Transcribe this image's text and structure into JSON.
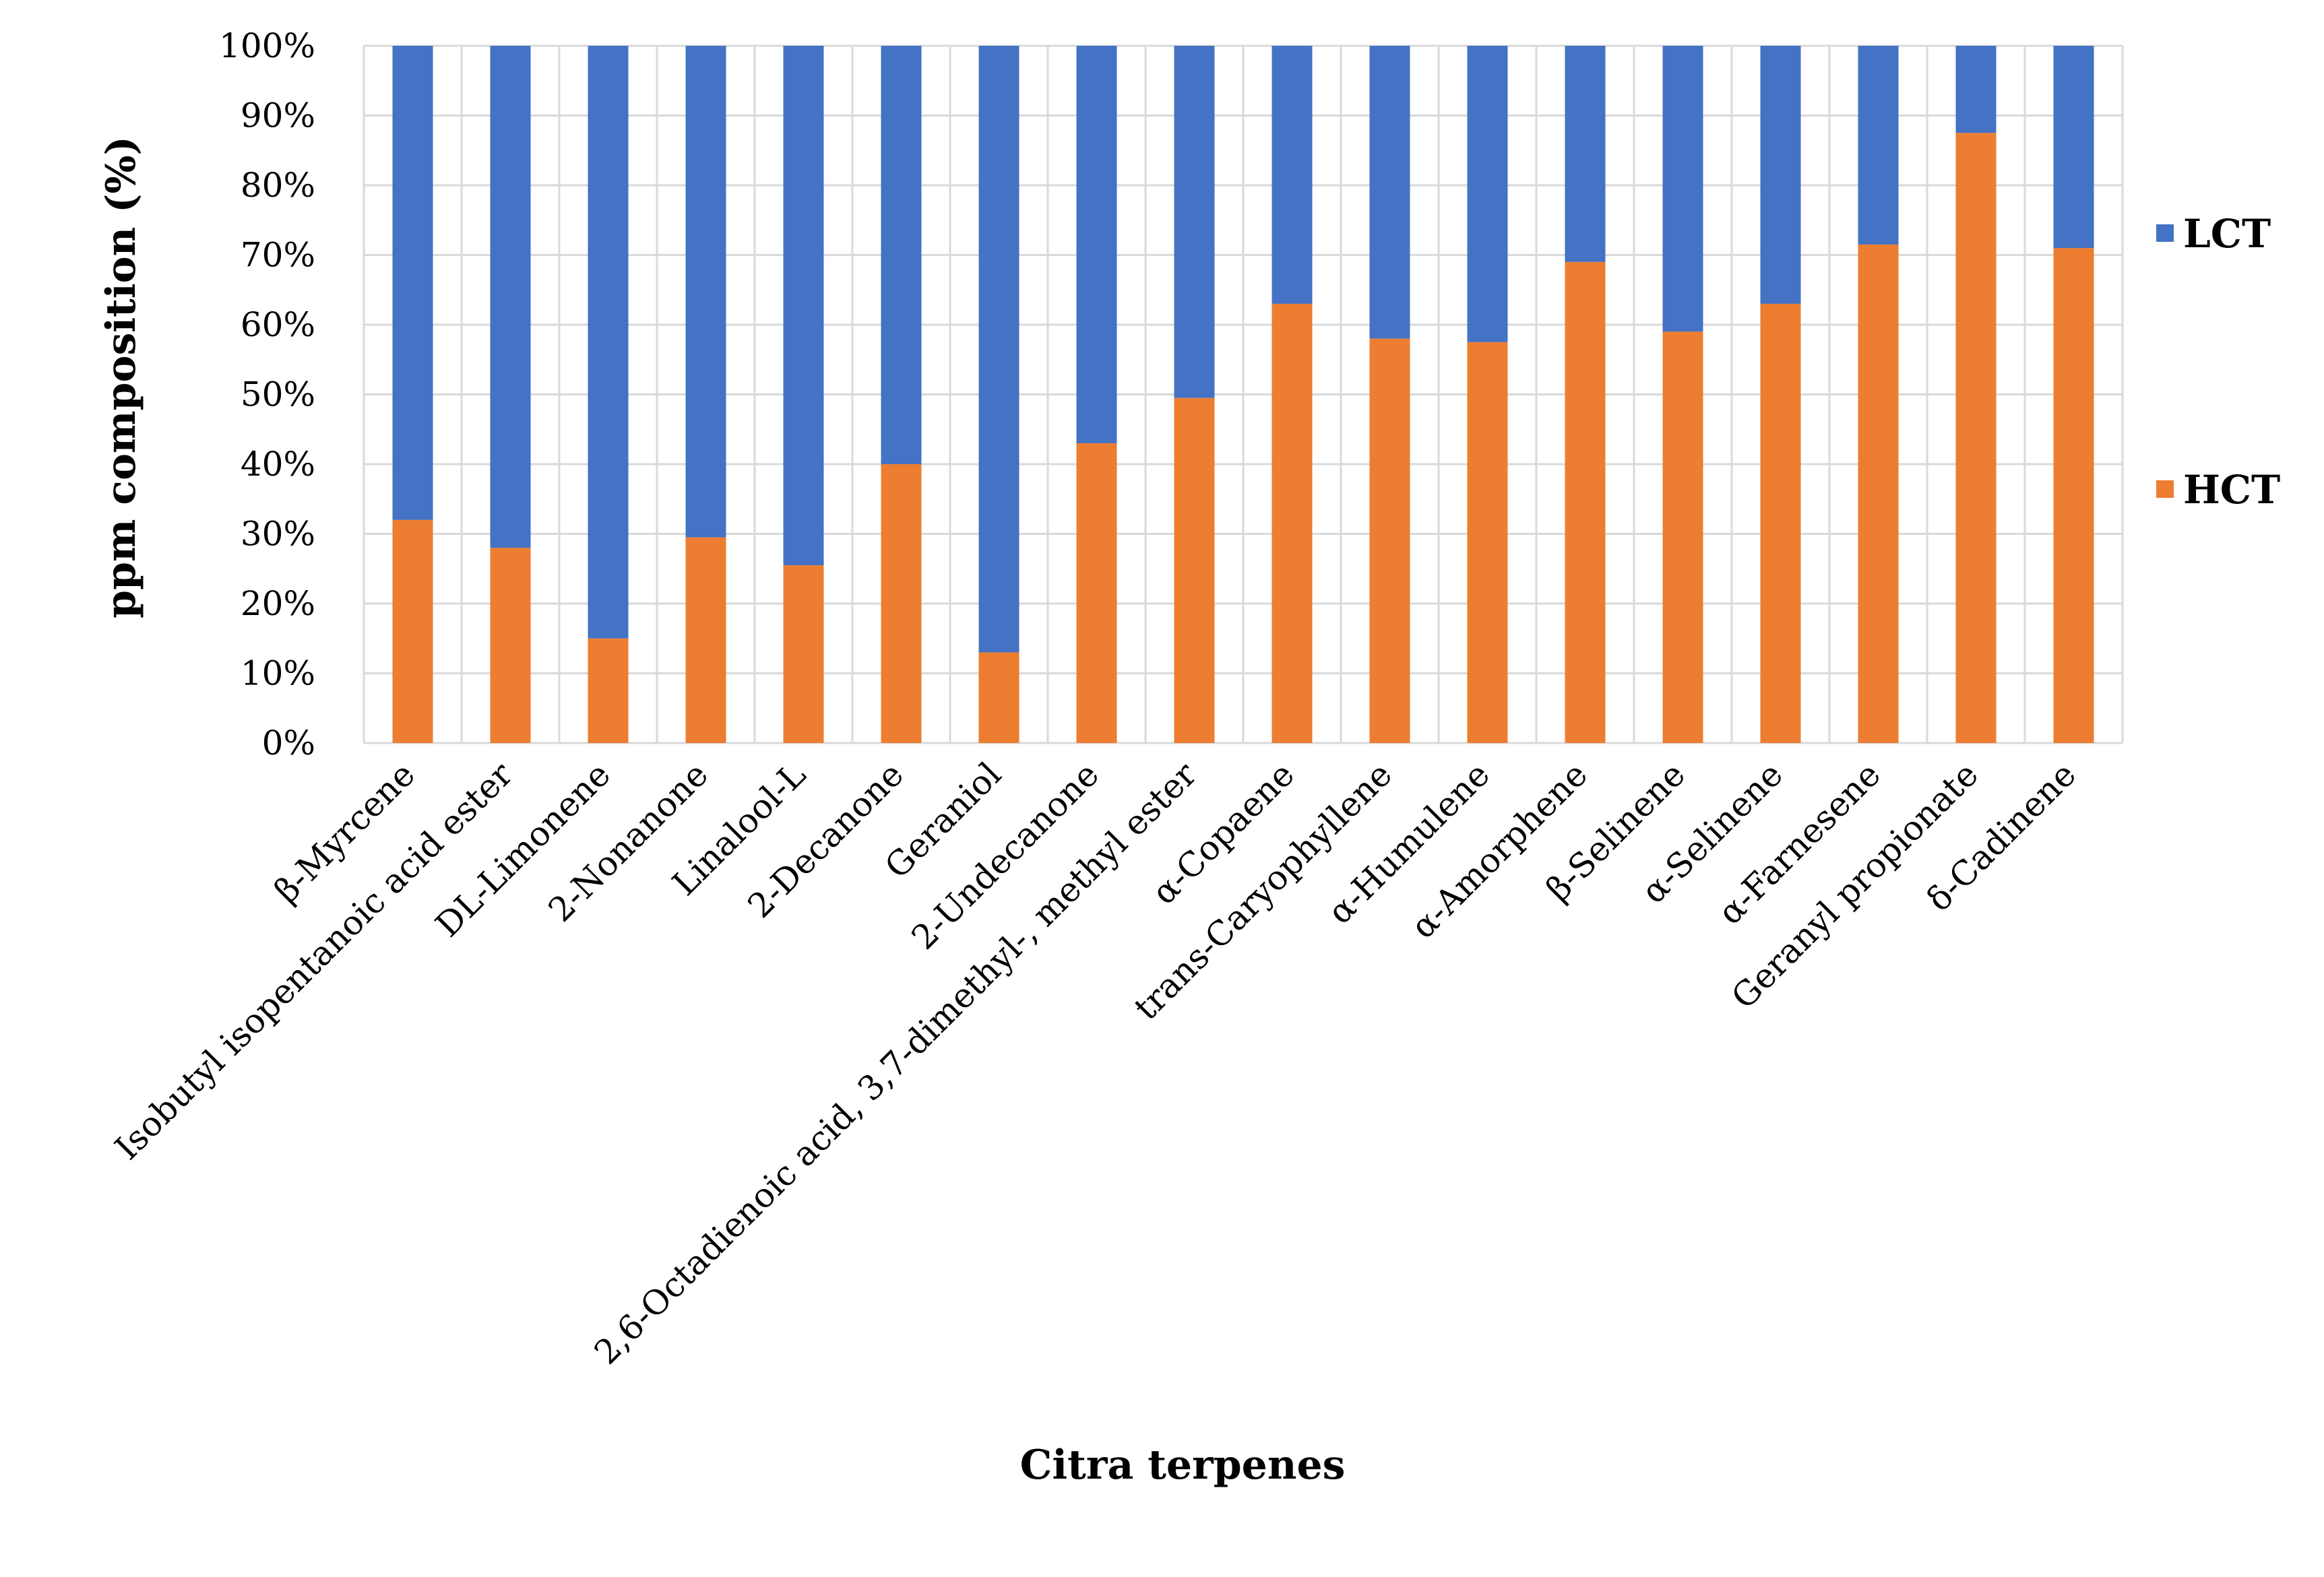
{
  "chart_data": {
    "type": "bar",
    "stacked": true,
    "title": "",
    "xlabel": "Citra terpenes",
    "ylabel": "ppm composition (%)",
    "ylim": [
      0,
      100
    ],
    "y_ticks": [
      "0%",
      "10%",
      "20%",
      "30%",
      "40%",
      "50%",
      "60%",
      "70%",
      "80%",
      "90%",
      "100%"
    ],
    "grid": true,
    "legend_position": "right",
    "categories": [
      "β-Myrcene",
      "Isobutyl isopentanoic acid ester",
      "DL-Limonene",
      "2-Nonanone",
      "Linalool-L",
      "2-Decanone",
      "Geraniol",
      "2-Undecanone",
      "2,6-Octadienoic acid, 3,7-dimethyl-, methyl ester",
      "α-Copaene",
      "trans-Caryophyllene",
      "α-Humulene",
      "α-Amorphene",
      "β-Selinene",
      "α-Selinene",
      "α-Farnesene",
      "Geranyl propionate",
      "δ-Cadinene"
    ],
    "series": [
      {
        "name": "HCT",
        "color": "#ED7D31",
        "values": [
          32,
          28,
          15,
          29.5,
          25.5,
          40,
          13,
          43,
          49.5,
          63,
          58,
          57.5,
          69,
          59,
          63,
          71.5,
          87.5,
          71
        ]
      },
      {
        "name": "LCT",
        "color": "#4472C4",
        "values": [
          68,
          72,
          85,
          70.5,
          74.5,
          60,
          87,
          57,
          50.5,
          37,
          42,
          42.5,
          31,
          41,
          37,
          28.5,
          12.5,
          29
        ]
      }
    ],
    "legend": [
      {
        "name": "LCT",
        "color": "#4472C4"
      },
      {
        "name": "HCT",
        "color": "#ED7D31"
      }
    ]
  }
}
